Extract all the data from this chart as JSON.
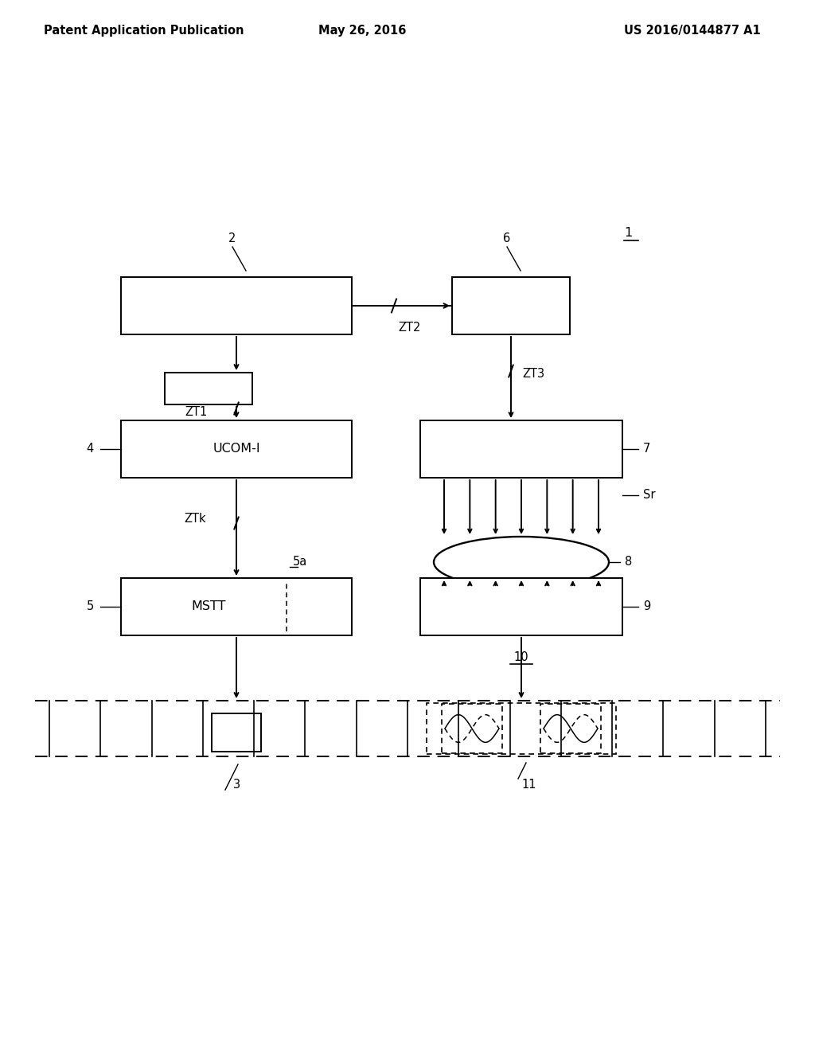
{
  "bg_color": "#ffffff",
  "header_left": "Patent Application Publication",
  "header_mid": "May 26, 2016",
  "header_right": "US 2016/0144877 A1",
  "label_1": "1",
  "label_2": "2",
  "label_3": "3",
  "label_4": "4",
  "label_5": "5",
  "label_5a": "5a",
  "label_6": "6",
  "label_7": "7",
  "label_8": "8",
  "label_9": "9",
  "label_10": "10",
  "label_11": "11",
  "label_ZT1": "ZT1",
  "label_ZT2": "ZT2",
  "label_ZT3": "ZT3",
  "label_ZTk": "ZTk",
  "label_Sr": "Sr",
  "label_UCOM": "UCOM-I",
  "label_MSTT": "MSTT",
  "lw": 1.4,
  "font_size": 10.5
}
